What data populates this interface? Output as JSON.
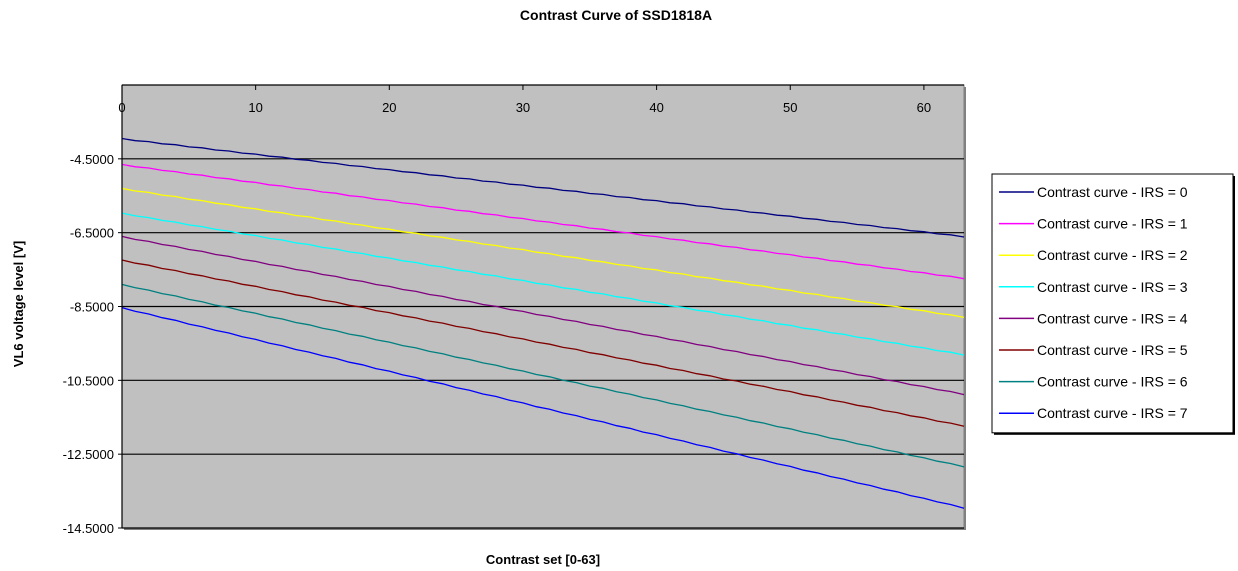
{
  "chart_data": {
    "type": "line",
    "title": "Contrast Curve of SSD1818A",
    "xlabel": "Contrast set [0-63]",
    "ylabel": "VL6 voltage level [V]",
    "xlim": [
      0,
      63
    ],
    "ylim": [
      -14.5,
      -2.5
    ],
    "x_ticks": [
      0,
      10,
      20,
      30,
      40,
      50,
      60
    ],
    "y_ticks": [
      -4.5,
      -6.5,
      -8.5,
      -10.5,
      -12.5,
      -14.5
    ],
    "y_tick_labels": [
      "-4.5000",
      "-6.5000",
      "-8.5000",
      "-10.5000",
      "-12.5000",
      "-14.5000"
    ],
    "x_axis_position": "top",
    "grid": "horizontal",
    "plot_background": "#c0c0c0",
    "legend": "right",
    "x": [
      0,
      63
    ],
    "series": [
      {
        "name": "Contrast curve - IRS = 0",
        "color": "#000080",
        "values": [
          -3.95,
          -6.6
        ]
      },
      {
        "name": "Contrast curve - IRS = 1",
        "color": "#ff00ff",
        "values": [
          -4.65,
          -7.73
        ]
      },
      {
        "name": "Contrast curve - IRS = 2",
        "color": "#ffff00",
        "values": [
          -5.3,
          -8.78
        ]
      },
      {
        "name": "Contrast curve - IRS = 3",
        "color": "#00ffff",
        "values": [
          -5.97,
          -9.8
        ]
      },
      {
        "name": "Contrast curve - IRS = 4",
        "color": "#800080",
        "values": [
          -6.6,
          -10.87
        ]
      },
      {
        "name": "Contrast curve - IRS = 5",
        "color": "#800000",
        "values": [
          -7.24,
          -11.73
        ]
      },
      {
        "name": "Contrast curve - IRS = 6",
        "color": "#008080",
        "values": [
          -7.9,
          -12.83
        ]
      },
      {
        "name": "Contrast curve - IRS = 7",
        "color": "#0000ff",
        "values": [
          -8.53,
          -13.95
        ]
      }
    ]
  }
}
